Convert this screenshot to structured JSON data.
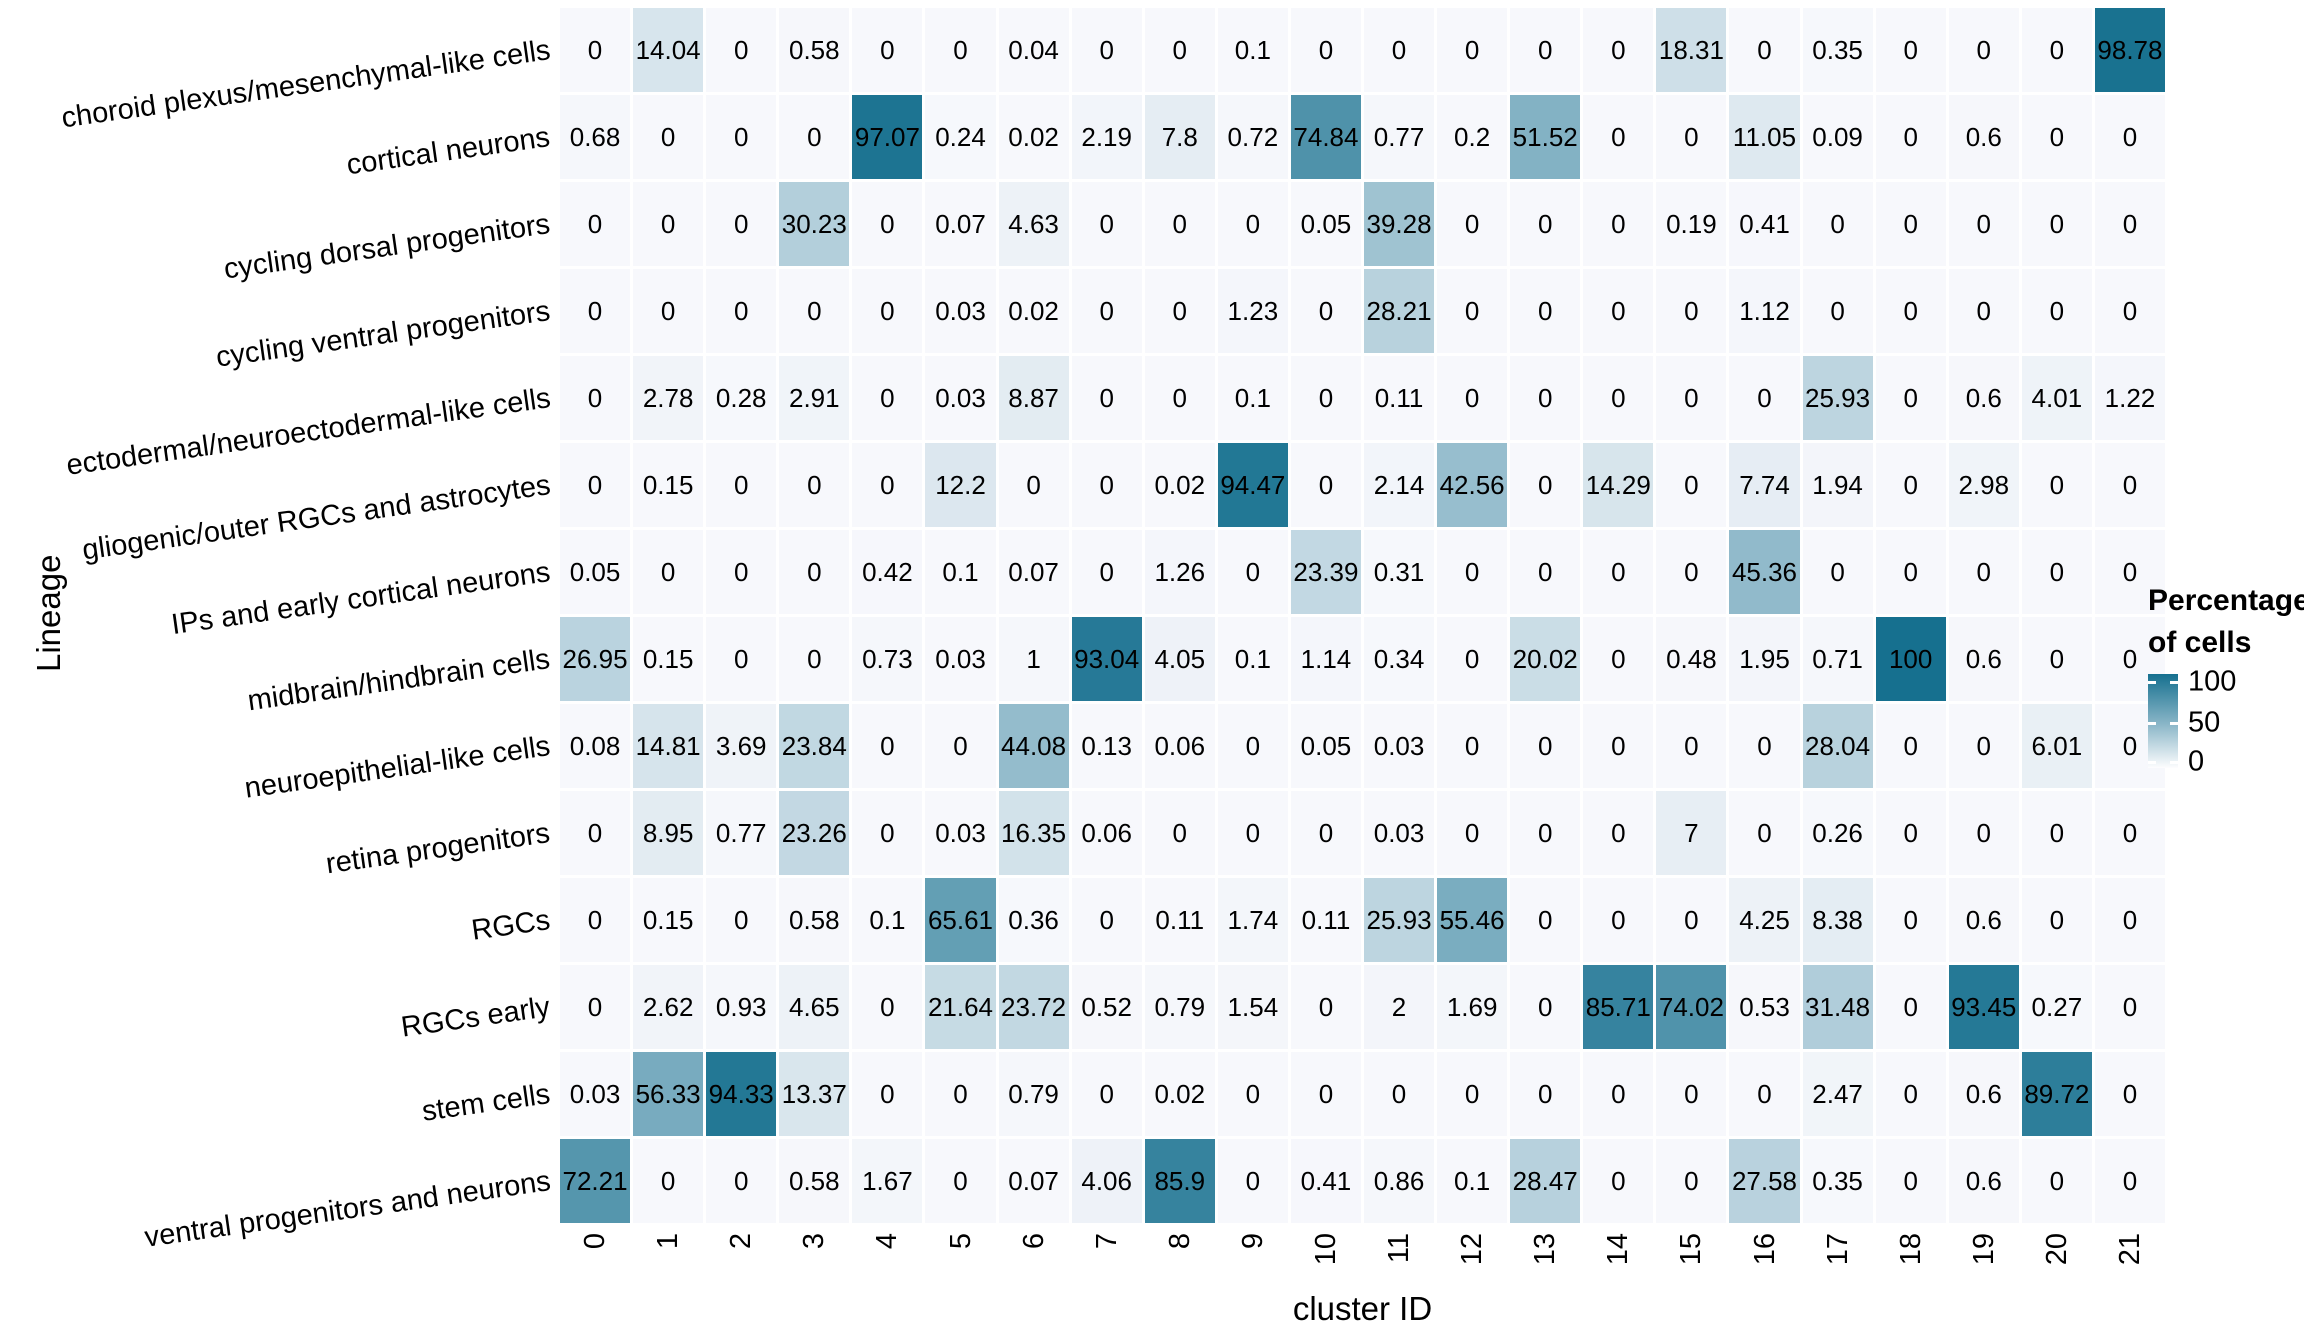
{
  "chart_data": {
    "type": "heatmap",
    "xlabel": "cluster ID",
    "ylabel": "Lineage",
    "x_categories": [
      "0",
      "1",
      "2",
      "3",
      "4",
      "5",
      "6",
      "7",
      "8",
      "9",
      "10",
      "11",
      "12",
      "13",
      "14",
      "15",
      "16",
      "17",
      "18",
      "19",
      "20",
      "21"
    ],
    "y_categories": [
      "choroid plexus/mesenchymal-like cells",
      "cortical neurons",
      "cycling dorsal progenitors",
      "cycling ventral progenitors",
      "ectodermal/neuroectodermal-like cells",
      "gliogenic/outer RGCs and astrocytes",
      "IPs and early cortical neurons",
      "midbrain/hindbrain cells",
      "neuroepithelial-like cells",
      "retina progenitors",
      "RGCs",
      "RGCs early",
      "stem cells",
      "ventral progenitors and neurons"
    ],
    "values": [
      [
        0,
        14.04,
        0,
        0.58,
        0,
        0,
        0.04,
        0,
        0,
        0.1,
        0,
        0,
        0,
        0,
        0,
        18.31,
        0,
        0.35,
        0,
        0,
        0,
        98.78
      ],
      [
        0.68,
        0,
        0,
        0,
        97.07,
        0.24,
        0.02,
        2.19,
        7.8,
        0.72,
        74.84,
        0.77,
        0.2,
        51.52,
        0,
        0,
        11.05,
        0.09,
        0,
        0.6,
        0,
        0
      ],
      [
        0,
        0,
        0,
        30.23,
        0,
        0.07,
        4.63,
        0,
        0,
        0,
        0.05,
        39.28,
        0,
        0,
        0,
        0.19,
        0.41,
        0,
        0,
        0,
        0,
        0
      ],
      [
        0,
        0,
        0,
        0,
        0,
        0.03,
        0.02,
        0,
        0,
        1.23,
        0,
        28.21,
        0,
        0,
        0,
        0,
        1.12,
        0,
        0,
        0,
        0,
        0
      ],
      [
        0,
        2.78,
        0.28,
        2.91,
        0,
        0.03,
        8.87,
        0,
        0,
        0.1,
        0,
        0.11,
        0,
        0,
        0,
        0,
        0,
        25.93,
        0,
        0.6,
        4.01,
        1.22
      ],
      [
        0,
        0.15,
        0,
        0,
        0,
        12.2,
        0,
        0,
        0.02,
        94.47,
        0,
        2.14,
        42.56,
        0,
        14.29,
        0,
        7.74,
        1.94,
        0,
        2.98,
        0,
        0
      ],
      [
        0.05,
        0,
        0,
        0,
        0.42,
        0.1,
        0.07,
        0,
        1.26,
        0,
        23.39,
        0.31,
        0,
        0,
        0,
        0,
        45.36,
        0,
        0,
        0,
        0,
        0
      ],
      [
        26.95,
        0.15,
        0,
        0,
        0.73,
        0.03,
        1,
        93.04,
        4.05,
        0.1,
        1.14,
        0.34,
        0,
        20.02,
        0,
        0.48,
        1.95,
        0.71,
        100,
        0.6,
        0,
        0
      ],
      [
        0.08,
        14.81,
        3.69,
        23.84,
        0,
        0,
        44.08,
        0.13,
        0.06,
        0,
        0.05,
        0.03,
        0,
        0,
        0,
        0,
        0,
        28.04,
        0,
        0,
        6.01,
        0
      ],
      [
        0,
        8.95,
        0.77,
        23.26,
        0,
        0.03,
        16.35,
        0.06,
        0,
        0,
        0,
        0.03,
        0,
        0,
        0,
        7,
        0,
        0.26,
        0,
        0,
        0,
        0
      ],
      [
        0,
        0.15,
        0,
        0.58,
        0.1,
        65.61,
        0.36,
        0,
        0.11,
        1.74,
        0.11,
        25.93,
        55.46,
        0,
        0,
        0,
        4.25,
        8.38,
        0,
        0.6,
        0,
        0
      ],
      [
        0,
        2.62,
        0.93,
        4.65,
        0,
        21.64,
        23.72,
        0.52,
        0.79,
        1.54,
        0,
        2,
        1.69,
        0,
        85.71,
        74.02,
        0.53,
        31.48,
        0,
        93.45,
        0.27,
        0
      ],
      [
        0.03,
        56.33,
        94.33,
        13.37,
        0,
        0,
        0.79,
        0,
        0.02,
        0,
        0,
        0,
        0,
        0,
        0,
        0,
        0,
        2.47,
        0,
        0.6,
        89.72,
        0
      ],
      [
        72.21,
        0,
        0,
        0.58,
        1.67,
        0,
        0.07,
        4.06,
        85.9,
        0,
        0.41,
        0.86,
        0.1,
        28.47,
        0,
        0,
        27.58,
        0.35,
        0,
        0.6,
        0,
        0
      ]
    ],
    "legend": {
      "title_line1": "Percentage",
      "title_line2": "of cells",
      "tick_labels": [
        "100",
        "50",
        "0"
      ],
      "min": 0,
      "max": 100
    },
    "colors": {
      "low": "#f7f8fc",
      "high": "#16708f"
    }
  }
}
